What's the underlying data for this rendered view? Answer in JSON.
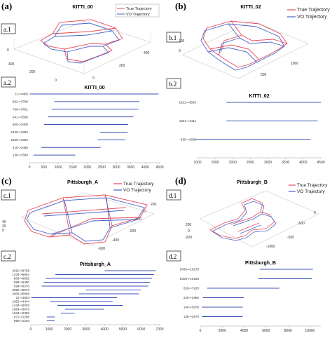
{
  "colors": {
    "true_traj": "#e8485a",
    "vo_traj": "#4a62c8",
    "bar": "#3b56b8"
  },
  "panels": [
    {
      "label": "(a)",
      "title": "KITTI_00",
      "legend": [
        "True Trajectory",
        "VO Trajectory"
      ],
      "sub3d": "a.1",
      "sub2d": "a.2",
      "axis_ticks_3d": [
        "0",
        "400",
        "200",
        "0",
        "0",
        "200",
        "400"
      ],
      "bar_title": "KITTI_00"
    },
    {
      "label": "(b)",
      "title": "KITTI_02",
      "legend": [
        "True Trajectory",
        "VO Trajectory"
      ],
      "sub3d": "b.1",
      "sub2d": "b.2",
      "axis_ticks_3d": [
        "100",
        "0",
        "500",
        "1000"
      ],
      "bar_title": "KITTI_02"
    },
    {
      "label": "(c)",
      "title": "Pittsburgh_A",
      "legend": [
        "True Trajectory",
        "VO Trajectory"
      ],
      "sub3d": "c.1",
      "sub2d": "c.2",
      "axis_ticks_3d": [
        "40",
        "20",
        "0",
        "-200",
        "-400",
        "-600",
        "-200",
        "0",
        "200"
      ],
      "bar_title": "Pittsburgh_A"
    },
    {
      "label": "(d)",
      "title": "Pittsburgh_B",
      "legend": [
        "True Trajectory",
        "VO Trajectory"
      ],
      "sub3d": "d.1",
      "sub2d": "d.2",
      "axis_ticks_3d": [
        "200",
        "0",
        "-200",
        "-500",
        "-1000",
        "-500",
        "0"
      ],
      "bar_title": "Pittsburgh_B"
    }
  ],
  "chart_data": [
    {
      "type": "bar",
      "orientation": "horizontal",
      "title": "KITTI_00",
      "xlim": [
        0,
        4500
      ],
      "xticks": [
        "0",
        "500",
        "1000",
        "1500",
        "2000",
        "2500",
        "3000",
        "3500",
        "4000",
        "4500"
      ],
      "categories": [
        "11->4460",
        "862->3799",
        "766->3761",
        "641->3595",
        "505->3409",
        "2445->3396",
        "2360->3302",
        "410->2460",
        "138->1584"
      ],
      "ranges": [
        [
          11,
          4460
        ],
        [
          862,
          3799
        ],
        [
          766,
          3761
        ],
        [
          641,
          3595
        ],
        [
          505,
          3409
        ],
        [
          2445,
          3396
        ],
        [
          2360,
          3302
        ],
        [
          410,
          2460
        ],
        [
          138,
          1584
        ]
      ]
    },
    {
      "type": "bar",
      "orientation": "horizontal",
      "title": "KITTI_02",
      "xlim": [
        1000,
        4500
      ],
      "xticks": [
        "1000",
        "1500",
        "2000",
        "2500",
        "3000",
        "3500",
        "4000",
        "4500"
      ],
      "categories": [
        "1821->4505",
        "1821->4411",
        "939->4209"
      ],
      "ranges": [
        [
          1821,
          4505
        ],
        [
          1821,
          4411
        ],
        [
          939,
          4209
        ]
      ]
    },
    {
      "type": "bar",
      "orientation": "horizontal",
      "title": "Pittsburgh_A",
      "xlim": [
        0,
        7000
      ],
      "xticks": [
        "0",
        "1000",
        "2000",
        "3000",
        "4000",
        "5000",
        "6000",
        "7000"
      ],
      "categories": [
        "4010->6788",
        "1334->6684",
        "806->6582",
        "698->6480",
        "594->6378",
        "2992->5970",
        "2608->5868",
        "22->4684",
        "1052->4444",
        "1434->5002",
        "1864->3970",
        "1634->2380",
        "872->1298",
        "868->1294"
      ],
      "ranges": [
        [
          4010,
          6788
        ],
        [
          1334,
          6684
        ],
        [
          806,
          6582
        ],
        [
          698,
          6480
        ],
        [
          594,
          6378
        ],
        [
          2992,
          5970
        ],
        [
          2608,
          5868
        ],
        [
          22,
          4684
        ],
        [
          1052,
          4444
        ],
        [
          1434,
          5002
        ],
        [
          1864,
          3970
        ],
        [
          1634,
          2380
        ],
        [
          872,
          1298
        ],
        [
          868,
          1294
        ]
      ]
    },
    {
      "type": "bar",
      "orientation": "horizontal",
      "title": "Pittsburgh_B",
      "xlim": [
        0,
        11000
      ],
      "xticks": [
        "0",
        "2000",
        "4000",
        "6000",
        "8000",
        "10000"
      ],
      "categories": [
        "5434->10276",
        "5306->10168",
        "626->7220",
        "226->3980",
        "140->3878",
        "136->3870"
      ],
      "ranges": [
        [
          5434,
          10276
        ],
        [
          5306,
          10168
        ],
        [
          626,
          7220
        ],
        [
          226,
          3980
        ],
        [
          140,
          3878
        ],
        [
          136,
          3870
        ]
      ]
    }
  ]
}
